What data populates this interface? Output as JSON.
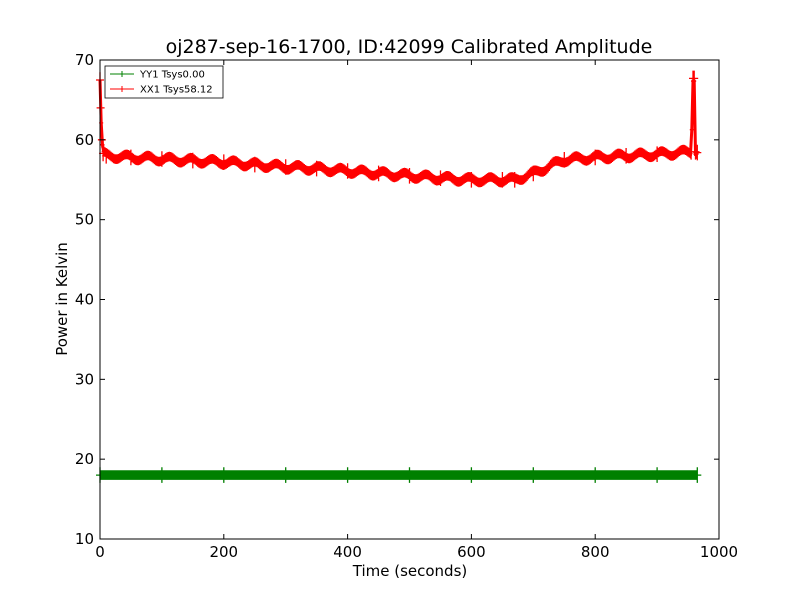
{
  "chart_data": {
    "type": "line",
    "title": "oj287-sep-16-1700, ID:42099 Calibrated Amplitude",
    "xlabel": "Time (seconds)",
    "ylabel": "Power in Kelvin",
    "xlim": [
      0,
      1000
    ],
    "ylim": [
      10,
      70
    ],
    "xticks": [
      "0",
      "200",
      "400",
      "600",
      "800",
      "1000"
    ],
    "yticks": [
      "10",
      "20",
      "30",
      "40",
      "50",
      "60",
      "70"
    ],
    "grid": false,
    "legend_position": "top-left",
    "series": [
      {
        "name": "YY1 Tsys0.00",
        "color": "#008000",
        "x": [
          0,
          100,
          200,
          300,
          400,
          500,
          600,
          700,
          800,
          900,
          965
        ],
        "y": [
          18.0,
          18.0,
          18.0,
          18.0,
          18.0,
          18.0,
          18.0,
          18.0,
          18.0,
          18.0,
          18.0
        ],
        "error": 0.6
      },
      {
        "name": "XX1 Tsys58.12",
        "color": "#ff0000",
        "x": [
          0,
          1,
          3,
          5,
          10,
          50,
          100,
          150,
          200,
          250,
          300,
          350,
          400,
          450,
          500,
          550,
          600,
          650,
          670,
          700,
          750,
          800,
          850,
          900,
          955,
          958,
          960,
          962,
          965
        ],
        "y": [
          67.5,
          64.0,
          60.0,
          58.3,
          58.0,
          57.8,
          57.6,
          57.4,
          57.2,
          56.9,
          56.6,
          56.4,
          56.1,
          55.8,
          55.5,
          55.2,
          55.0,
          55.0,
          55.0,
          55.8,
          57.5,
          57.8,
          58.0,
          58.2,
          58.5,
          67.7,
          67.7,
          58.5,
          58.4
        ],
        "error": 0.6
      }
    ]
  }
}
